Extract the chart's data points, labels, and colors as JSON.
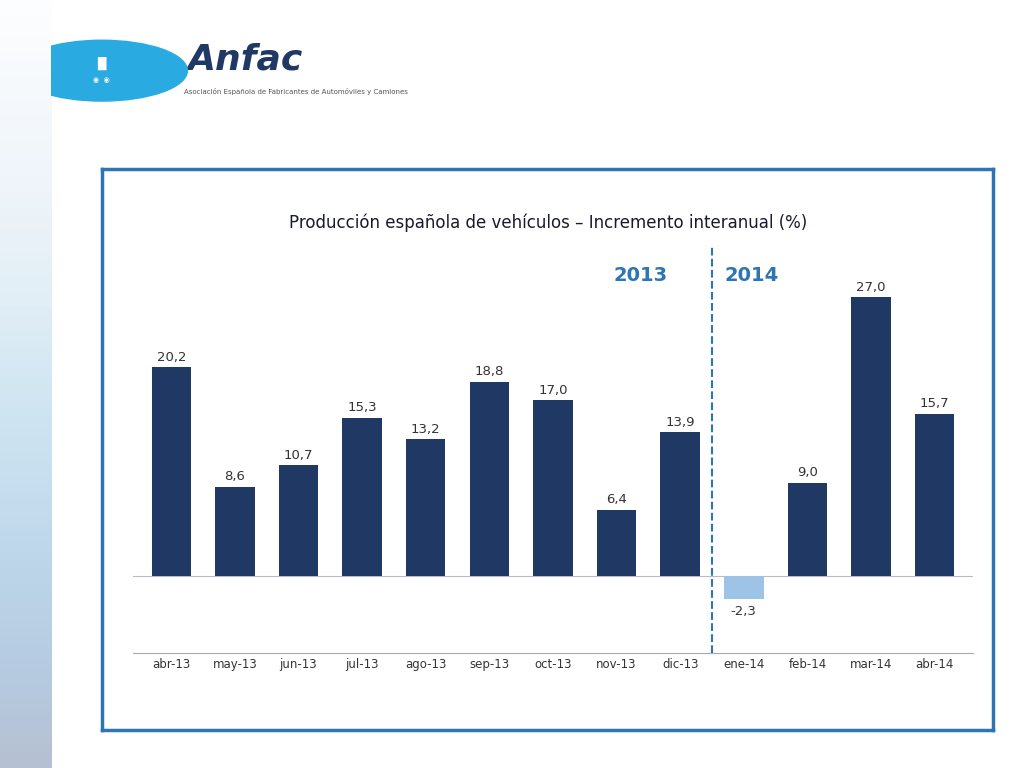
{
  "categories": [
    "abr-13",
    "may-13",
    "jun-13",
    "jul-13",
    "ago-13",
    "sep-13",
    "oct-13",
    "nov-13",
    "dic-13",
    "ene-14",
    "feb-14",
    "mar-14",
    "abr-14"
  ],
  "values": [
    20.2,
    8.6,
    10.7,
    15.3,
    13.2,
    18.8,
    17.0,
    6.4,
    13.9,
    -2.3,
    9.0,
    27.0,
    15.7
  ],
  "bar_color_positive": "#1F3864",
  "bar_color_negative": "#9DC3E6",
  "title": "Producción española de vehículos – Incremento interanual (%)",
  "year_2013_label": "2013",
  "year_2014_label": "2014",
  "year_label_color": "#2E75B6",
  "background_color": "#FFFFFF",
  "chart_border_color": "#2E75B6",
  "outer_bg": "#FFFFFF",
  "outer_bg_left": "#D6E4F0",
  "title_fontsize": 12,
  "label_fontsize": 9.5,
  "tick_fontsize": 8.5,
  "year_fontsize": 14,
  "anfac_color": "#1F3864",
  "circle_color": "#29ABE2",
  "subtitle_text": "Asociación Española de Fabricantes de Automóviles y Camiones"
}
